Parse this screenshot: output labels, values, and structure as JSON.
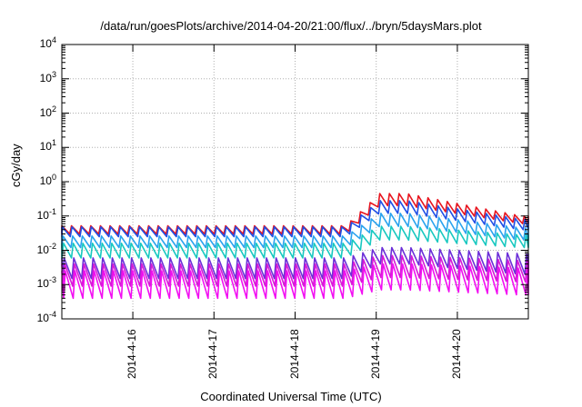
{
  "chart_data": {
    "type": "line",
    "title": "/data/run/goesPlots/archive/2014-04-20/21:00/flux/../bryn/5daysMars.plot",
    "xlabel": "Coordinated Universal Time (UTC)",
    "ylabel": "cGy/day",
    "yscale": "log",
    "ylim": [
      0.0001,
      10000
    ],
    "xlim": [
      "2014-04-15T03:00",
      "2014-04-20T21:00"
    ],
    "yticks": [
      {
        "base": "10",
        "exp": "-4"
      },
      {
        "base": "10",
        "exp": "-3"
      },
      {
        "base": "10",
        "exp": "-2"
      },
      {
        "base": "10",
        "exp": "-1"
      },
      {
        "base": "10",
        "exp": "0"
      },
      {
        "base": "10",
        "exp": "1"
      },
      {
        "base": "10",
        "exp": "2"
      },
      {
        "base": "10",
        "exp": "3"
      },
      {
        "base": "10",
        "exp": "4"
      }
    ],
    "xticks": [
      "2014-4-16",
      "2014-4-17",
      "2014-4-18",
      "2014-4-19",
      "2014-4-20"
    ],
    "grid": true,
    "legend": "none",
    "sawtooth_period_hours": 2.85,
    "event_start": "2014-04-18T15:00",
    "series": [
      {
        "color": "#e8141e",
        "baseline": [
          0.03,
          0.052
        ],
        "event": [
          0.2,
          0.45
        ],
        "late": [
          0.06,
          0.1
        ]
      },
      {
        "color": "#1f4fe6",
        "baseline": [
          0.025,
          0.048
        ],
        "event": [
          0.12,
          0.28
        ],
        "late": [
          0.04,
          0.08
        ]
      },
      {
        "color": "#2aa3ee",
        "baseline": [
          0.012,
          0.026
        ],
        "event": [
          0.05,
          0.12
        ],
        "late": [
          0.02,
          0.045
        ]
      },
      {
        "color": "#18c8c0",
        "baseline": [
          0.006,
          0.016
        ],
        "event": [
          0.02,
          0.05
        ],
        "late": [
          0.012,
          0.028
        ]
      },
      {
        "color": "#6b2fd8",
        "baseline": [
          0.0015,
          0.006
        ],
        "event": [
          0.004,
          0.012
        ],
        "late": [
          0.002,
          0.008
        ]
      },
      {
        "color": "#d61ad6",
        "baseline": [
          0.0009,
          0.004
        ],
        "event": [
          0.0016,
          0.007
        ],
        "late": [
          0.0012,
          0.005
        ]
      },
      {
        "color": "#f20ff2",
        "baseline": [
          0.0004,
          0.0025
        ],
        "event": [
          0.0007,
          0.004
        ],
        "late": [
          0.0005,
          0.003
        ]
      }
    ]
  }
}
